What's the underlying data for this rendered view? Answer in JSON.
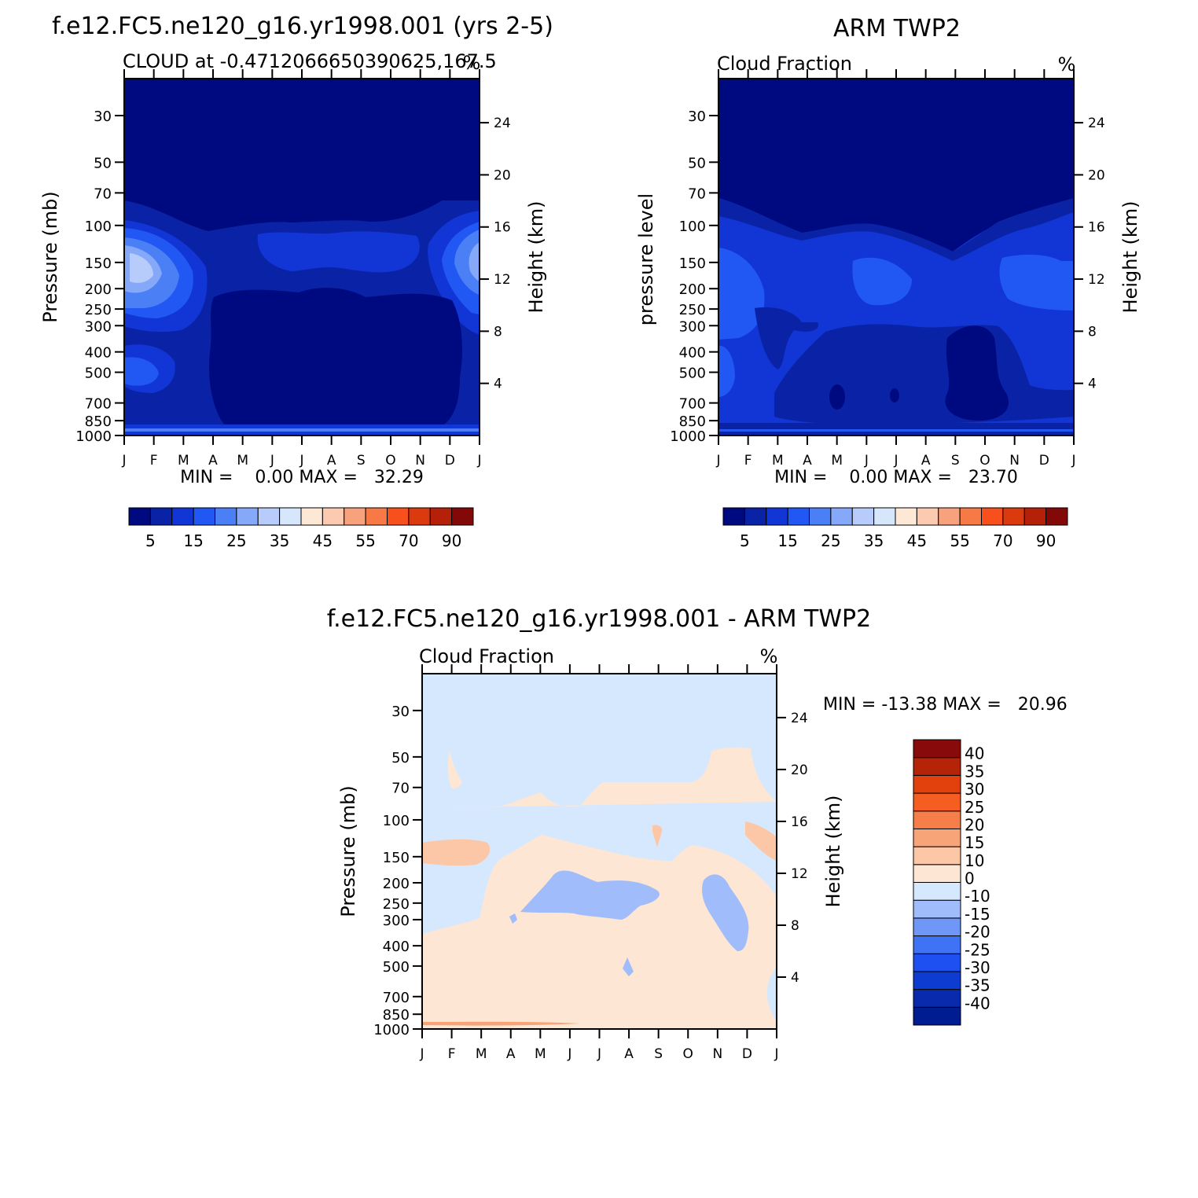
{
  "colors": {
    "seq": [
      "#000a80",
      "#0a23a6",
      "#1236d6",
      "#2157f2",
      "#4a7ff5",
      "#85a8f8",
      "#b7ccfa",
      "#d6e6fb",
      "#fde8d6",
      "#fbcab0",
      "#f7a27d",
      "#f77946",
      "#f8501c",
      "#db3a0e",
      "#b52108",
      "#830808"
    ],
    "diff": [
      "#001c91",
      "#0a2aad",
      "#0d3dd0",
      "#1e4ff0",
      "#3f73f5",
      "#6f97f8",
      "#a0bcfa",
      "#d6e8fd",
      "#fde6d4",
      "#fbc7a6",
      "#f7a479",
      "#f67f49",
      "#f55e21",
      "#e2400c",
      "#b52408",
      "#880a0a"
    ]
  },
  "panel1": {
    "title": "f.e12.FC5.ne120_g16.yr1998.001 (yrs 2-5)",
    "subtitle": "CLOUD at -0.4712066650390625,167.5",
    "units": "%",
    "ylabel": "Pressure (mb)",
    "ylabel_right": "Height (km)",
    "stats": "MIN =    0.00 MAX =   32.29"
  },
  "panel2": {
    "title": "ARM TWP2",
    "subtitle": "Cloud Fraction",
    "units": "%",
    "ylabel": "pressure level",
    "ylabel_right": "Height (km)",
    "stats": "MIN =    0.00 MAX =   23.70"
  },
  "panel3": {
    "title": "f.e12.FC5.ne120_g16.yr1998.001 - ARM TWP2",
    "subtitle": "Cloud Fraction",
    "units": "%",
    "ylabel": "Pressure (mb)",
    "ylabel_right": "Height (km)",
    "stats": "MIN = -13.38 MAX =   20.96"
  },
  "chart_data": [
    {
      "type": "heatmap",
      "title": "f.e12.FC5.ne120_g16.yr1998.001 (yrs 2-5)",
      "subtitle": "CLOUD at -0.4712066650390625,167.5",
      "xlabel": "",
      "ylabel": "Pressure (mb)",
      "ylabel_right": "Height (km)",
      "x_ticks": [
        "J",
        "F",
        "M",
        "A",
        "M",
        "J",
        "J",
        "A",
        "S",
        "O",
        "N",
        "D",
        "J"
      ],
      "y_ticks": [
        30,
        50,
        70,
        100,
        150,
        200,
        250,
        300,
        400,
        500,
        700,
        850,
        1000
      ],
      "y_right_ticks": [
        24,
        20,
        16,
        12,
        8,
        4
      ],
      "min": 0.0,
      "max": 32.29,
      "colorbar_labels": [
        "5",
        "15",
        "25",
        "35",
        "45",
        "55",
        "70",
        "90"
      ],
      "features": [
        {
          "region": "stratosphere above 100 mb",
          "value": "<2"
        },
        {
          "region": "Jan-Feb upper troposphere near 200 mb",
          "value": "~30"
        },
        {
          "region": "Dec-Jan upper troposphere near 150 mb",
          "value": "~25"
        },
        {
          "region": "Apr-Dec mid troposphere 250-850 mb",
          "value": "<2"
        }
      ]
    },
    {
      "type": "heatmap",
      "title": "ARM TWP2",
      "subtitle": "Cloud Fraction",
      "xlabel": "",
      "ylabel": "pressure level",
      "ylabel_right": "Height (km)",
      "x_ticks": [
        "J",
        "F",
        "M",
        "A",
        "M",
        "J",
        "J",
        "A",
        "S",
        "O",
        "N",
        "D",
        "J"
      ],
      "y_ticks": [
        30,
        50,
        70,
        100,
        150,
        200,
        250,
        300,
        400,
        500,
        700,
        850,
        1000
      ],
      "y_right_ticks": [
        24,
        20,
        16,
        12,
        8,
        4
      ],
      "min": 0.0,
      "max": 23.7,
      "colorbar_labels": [
        "5",
        "15",
        "25",
        "35",
        "45",
        "55",
        "70",
        "90"
      ],
      "features": [
        {
          "region": "stratosphere above 100 mb",
          "value": "<2"
        },
        {
          "region": "Jan-Feb 200-300 mb",
          "value": "~20"
        },
        {
          "region": "troposphere 150-700 mb",
          "value": "10-20"
        },
        {
          "region": "Sep-Oct 400-850 mb",
          "value": "<5"
        }
      ]
    },
    {
      "type": "heatmap",
      "title": "f.e12.FC5.ne120_g16.yr1998.001 - ARM TWP2",
      "subtitle": "Cloud Fraction",
      "xlabel": "",
      "ylabel": "Pressure (mb)",
      "ylabel_right": "Height (km)",
      "x_ticks": [
        "J",
        "F",
        "M",
        "A",
        "M",
        "J",
        "J",
        "A",
        "S",
        "O",
        "N",
        "D",
        "J"
      ],
      "y_ticks": [
        30,
        50,
        70,
        100,
        150,
        200,
        250,
        300,
        400,
        500,
        700,
        850,
        1000
      ],
      "y_right_ticks": [
        24,
        20,
        16,
        12,
        8,
        4
      ],
      "min": -13.38,
      "max": 20.96,
      "colorbar_labels": [
        "40",
        "35",
        "30",
        "25",
        "20",
        "15",
        "10",
        "0",
        "-10",
        "-15",
        "-20",
        "-25",
        "-30",
        "-35",
        "-40"
      ],
      "features": [
        {
          "region": "stratosphere",
          "value": "-10 to 0"
        },
        {
          "region": "70-150 mb band",
          "value": "0 to 10"
        },
        {
          "region": "Jan-Feb ~150 mb",
          "value": "10 to 15"
        },
        {
          "region": "mid troposphere 200-850 mb",
          "value": "-10 to 0"
        },
        {
          "region": "May-Aug ~250 mb",
          "value": "-15 to -10"
        },
        {
          "region": "Nov-Dec 200-500 mb",
          "value": "-15 to -10"
        },
        {
          "region": "near surface 1000 mb",
          "value": "0 to 20"
        }
      ]
    }
  ]
}
